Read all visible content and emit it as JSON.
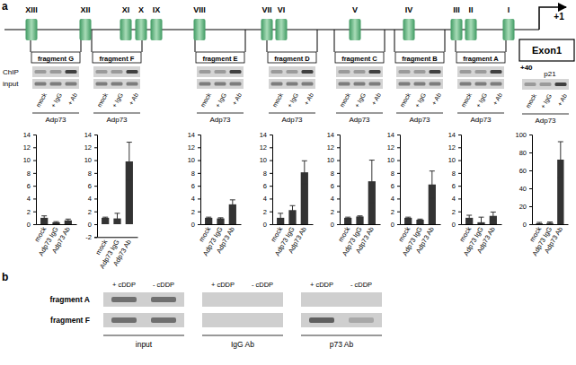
{
  "diagram": {
    "panel": "a",
    "elements": [
      "XIII",
      "XII",
      "XI",
      "X",
      "IX",
      "VIII",
      "VII",
      "VI",
      "V",
      "IV",
      "III",
      "II",
      "I"
    ],
    "tss": "+1",
    "exon": "Exon1",
    "fragments": [
      "fragment G",
      "fragment F",
      "fragment E",
      "fragment D",
      "fragment C",
      "fragment B",
      "fragment A"
    ],
    "gel_rows": [
      "ChIP",
      "input"
    ],
    "lanes": [
      "mock",
      "+ IgG",
      "+ Ab"
    ],
    "lane_group": "Adp73",
    "p21_position": "+40",
    "p21_label": "p21"
  },
  "chart_data": [
    {
      "type": "bar",
      "categories": [
        "mock",
        "Adp73 IgG",
        "Adp73 Ab"
      ],
      "values": [
        1.0,
        0.3,
        0.6
      ],
      "errors": [
        0.3,
        0.1,
        0.2
      ],
      "ylim": [
        0,
        14
      ],
      "yticks": [
        0,
        2,
        4,
        6,
        8,
        10,
        12,
        14
      ],
      "color": "#333333"
    },
    {
      "type": "bar",
      "categories": [
        "mock",
        "Adp73 IgG",
        "Adp73 Ab"
      ],
      "values": [
        1.0,
        0.9,
        9.8
      ],
      "errors": [
        0.1,
        0.8,
        3.0
      ],
      "ylim": [
        -2,
        14
      ],
      "yticks": [
        -2,
        0,
        2,
        4,
        6,
        8,
        10,
        12,
        14
      ],
      "color": "#333333"
    },
    {
      "type": "bar",
      "categories": [
        "mock",
        "Adp73 IgG",
        "Adp73 Ab"
      ],
      "values": [
        1.0,
        0.9,
        3.1
      ],
      "errors": [
        0.1,
        0.1,
        0.7
      ],
      "ylim": [
        0,
        14
      ],
      "yticks": [
        0,
        2,
        4,
        6,
        8,
        10,
        12,
        14
      ],
      "color": "#333333"
    },
    {
      "type": "bar",
      "categories": [
        "mock",
        "Adp73 IgG",
        "Adp73 Ab"
      ],
      "values": [
        1.0,
        2.2,
        8.1
      ],
      "errors": [
        0.7,
        0.7,
        1.8
      ],
      "ylim": [
        0,
        14
      ],
      "yticks": [
        0,
        2,
        4,
        6,
        8,
        10,
        12,
        14
      ],
      "color": "#333333"
    },
    {
      "type": "bar",
      "categories": [
        "mock",
        "Adp73 IgG",
        "Adp73 Ab"
      ],
      "values": [
        1.0,
        1.2,
        6.7
      ],
      "errors": [
        0.1,
        0.1,
        3.3
      ],
      "ylim": [
        0,
        14
      ],
      "yticks": [
        0,
        2,
        4,
        6,
        8,
        10,
        12,
        14
      ],
      "color": "#333333"
    },
    {
      "type": "bar",
      "categories": [
        "mock",
        "Adp73 IgG",
        "Adp73 Ab"
      ],
      "values": [
        1.0,
        0.7,
        6.2
      ],
      "errors": [
        0.1,
        0.1,
        2.1
      ],
      "ylim": [
        0,
        14
      ],
      "yticks": [
        0,
        2,
        4,
        6,
        8,
        10,
        12,
        14
      ],
      "color": "#333333"
    },
    {
      "type": "bar",
      "categories": [
        "mock",
        "Adp73 IgG",
        "Adp73 Ab"
      ],
      "values": [
        1.0,
        0.3,
        1.3
      ],
      "errors": [
        0.4,
        0.8,
        0.6
      ],
      "ylim": [
        0,
        14
      ],
      "yticks": [
        0,
        2,
        4,
        6,
        8,
        10,
        12,
        14
      ],
      "color": "#333333"
    },
    {
      "type": "bar",
      "categories": [
        "mock",
        "Adp73 IgG",
        "Adp73 Ab"
      ],
      "values": [
        1.0,
        1.5,
        72
      ],
      "errors": [
        1.0,
        1.0,
        20
      ],
      "ylim": [
        0,
        100
      ],
      "yticks": [
        0,
        20,
        40,
        60,
        80,
        100
      ],
      "color": "#333333"
    }
  ],
  "panel_b": {
    "panel": "b",
    "rows": [
      "fragment A",
      "fragment F"
    ],
    "lanes": [
      "+ cDDP",
      "- cDDP"
    ],
    "groups": [
      "input",
      "IgG Ab",
      "p73 Ab"
    ]
  }
}
